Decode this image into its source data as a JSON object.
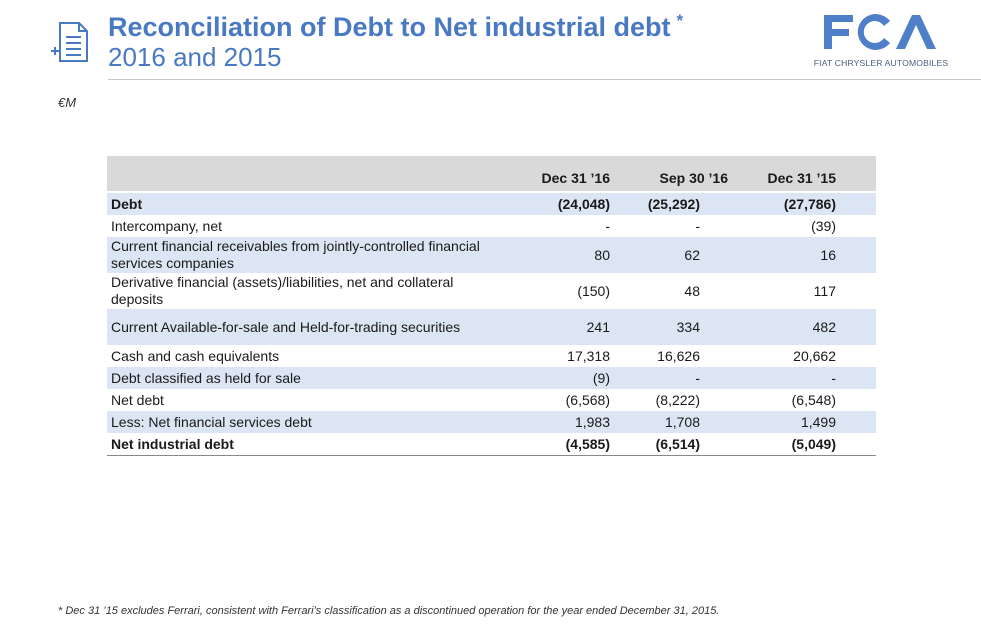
{
  "header": {
    "title": "Reconciliation of Debt to Net industrial debt",
    "title_mark": "*",
    "subtitle": "2016 and 2015"
  },
  "icons": {
    "header_icon": "document-add-icon"
  },
  "logo": {
    "mark_text": "FCA",
    "caption": "FIAT CHRYSLER AUTOMOBILES"
  },
  "units": "€M",
  "table": {
    "columns": [
      "Dec 31 ’16",
      "Sep 30 ’16",
      "Dec 31 ’15"
    ],
    "rows": [
      {
        "label": "Debt",
        "values": [
          "(24,048)",
          "(25,292)",
          "(27,786)"
        ]
      },
      {
        "label": "Intercompany, net",
        "values": [
          "-",
          "-",
          "(39)"
        ]
      },
      {
        "label": "Current financial receivables from jointly-controlled financial services companies",
        "values": [
          "80",
          "62",
          "16"
        ]
      },
      {
        "label": "Derivative financial (assets)/liabilities, net and collateral deposits",
        "values": [
          "(150)",
          "48",
          "117"
        ]
      },
      {
        "label": "Current Available-for-sale and Held-for-trading securities",
        "values": [
          "241",
          "334",
          "482"
        ]
      },
      {
        "label": "Cash and cash equivalents",
        "values": [
          "17,318",
          "16,626",
          "20,662"
        ]
      },
      {
        "label": "Debt classified as held for sale",
        "values": [
          "(9)",
          "-",
          "-"
        ]
      },
      {
        "label": "Net debt",
        "values": [
          "(6,568)",
          "(8,222)",
          "(6,548)"
        ]
      },
      {
        "label": "Less: Net financial services debt",
        "values": [
          "1,983",
          "1,708",
          "1,499"
        ]
      },
      {
        "label": "Net industrial debt",
        "values": [
          "(4,585)",
          "(6,514)",
          "(5,049)"
        ]
      }
    ]
  },
  "footnote": "* Dec 31 ’15 excludes Ferrari, consistent with Ferrari’s classification as a discontinued operation for the year ended December 31, 2015.",
  "colors": {
    "title_blue": "#4a79c4",
    "logo_blue": "#4f7fc9",
    "header_row_gray": "#d9d9d9",
    "band_blue": "#dbe5f3"
  }
}
